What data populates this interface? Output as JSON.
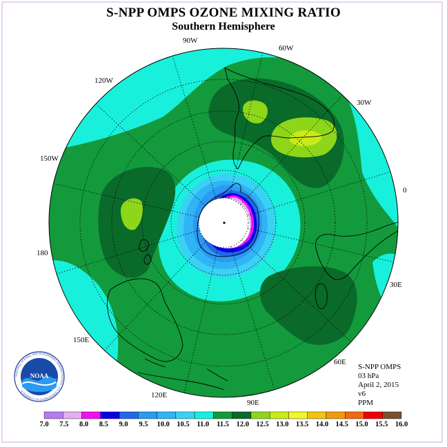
{
  "title": "S-NPP OMPS OZONE MIXING RATIO",
  "subtitle": "Southern Hemisphere",
  "info": {
    "instrument": "S-NPP OMPS",
    "level": "03 hPa",
    "date": "April 2, 2015",
    "version": "v6",
    "units": "PPM"
  },
  "logo": {
    "text": "NOAA",
    "ring_text": "NATIONAL OCEANIC AND ATMOSPHERIC ADMINISTRATION · U.S. DEPARTMENT OF COMMERCE"
  },
  "longitude_labels": {
    "lon_90W": "90W",
    "lon_60W": "60W",
    "lon_30W": "30W",
    "lon_0": "0",
    "lon_30E": "30E",
    "lon_60E": "60E",
    "lon_90E": "90E",
    "lon_120E": "120E",
    "lon_150E": "150E",
    "lon_180": "180",
    "lon_150W": "150W",
    "lon_120W": "120W"
  },
  "colorbar": {
    "labels": [
      "7.0",
      "7.5",
      "8.0",
      "8.5",
      "9.0",
      "9.5",
      "10.0",
      "10.5",
      "11.0",
      "11.5",
      "12.0",
      "12.5",
      "13.0",
      "13.5",
      "14.0",
      "14.5",
      "15.0",
      "15.5",
      "16.0"
    ],
    "colors": [
      "#b57cf0",
      "#e3aef2",
      "#f00ff0",
      "#0a00e6",
      "#1f68e8",
      "#2a9af2",
      "#30b4f5",
      "#3ad2f4",
      "#18f0dc",
      "#139a3c",
      "#0a6a2a",
      "#8ed61a",
      "#cbea1a",
      "#f4f42a",
      "#f2c414",
      "#f09a10",
      "#f06a10",
      "#f00000",
      "#7a5030"
    ]
  },
  "fields": {
    "background_range": "11.0-11.5",
    "dominant_range": "11.5-12.0",
    "max_range": "12.5-13.0",
    "polar_min_range": "< 7.0"
  }
}
